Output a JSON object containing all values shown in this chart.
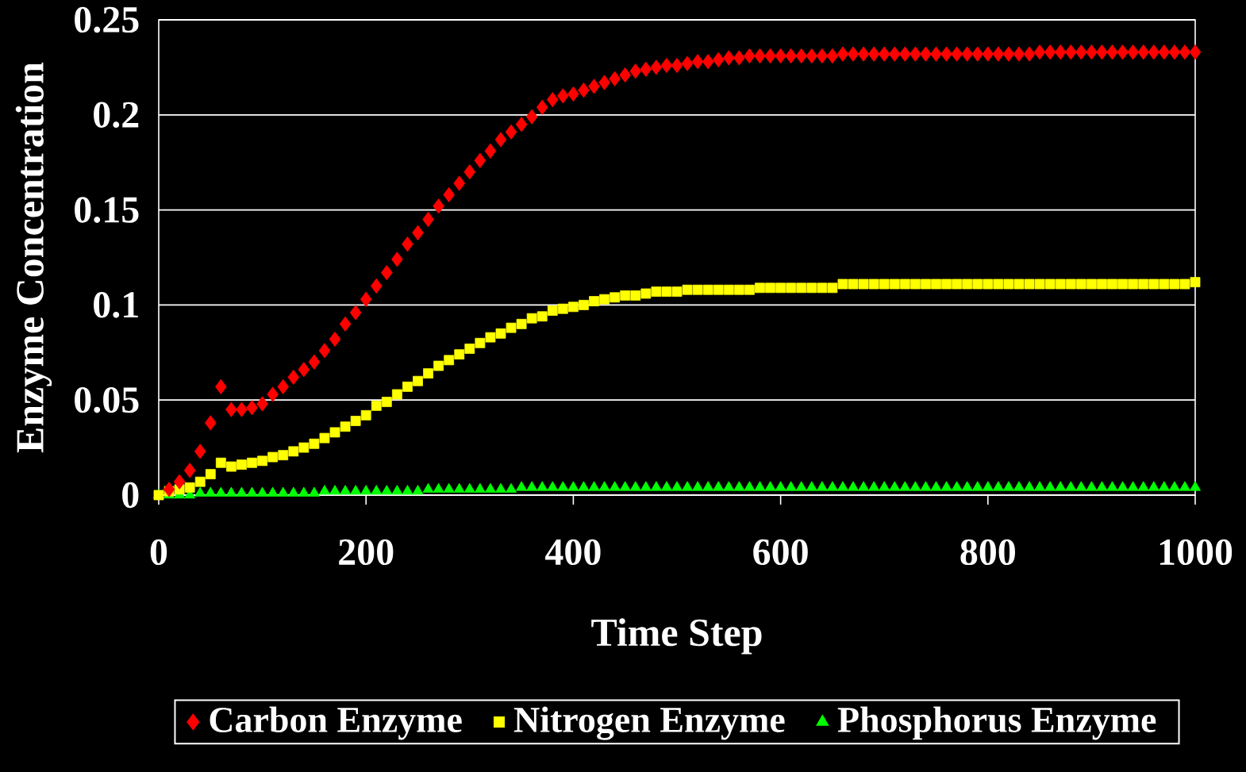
{
  "chart_data": {
    "type": "scatter",
    "xlabel": "Time Step",
    "ylabel": "Enzyme Concentration",
    "x": [
      0,
      10,
      20,
      30,
      40,
      50,
      60,
      70,
      80,
      90,
      100,
      110,
      120,
      130,
      140,
      150,
      160,
      170,
      180,
      190,
      200,
      210,
      220,
      230,
      240,
      250,
      260,
      270,
      280,
      290,
      300,
      310,
      320,
      330,
      340,
      350,
      360,
      370,
      380,
      390,
      400,
      410,
      420,
      430,
      440,
      450,
      460,
      470,
      480,
      490,
      500,
      510,
      520,
      530,
      540,
      550,
      560,
      570,
      580,
      590,
      600,
      610,
      620,
      630,
      640,
      650,
      660,
      670,
      680,
      690,
      700,
      710,
      720,
      730,
      740,
      750,
      760,
      770,
      780,
      790,
      800,
      810,
      820,
      830,
      840,
      850,
      860,
      870,
      880,
      890,
      900,
      910,
      920,
      930,
      940,
      950,
      960,
      970,
      980,
      990,
      1000
    ],
    "series": [
      {
        "name": "Carbon Enzyme",
        "color": "#ff0000",
        "marker": "diamond",
        "values": [
          null,
          0.003,
          0.007,
          0.013,
          0.023,
          0.038,
          0.057,
          0.045,
          0.045,
          0.046,
          0.048,
          0.053,
          0.057,
          0.062,
          0.066,
          0.07,
          0.076,
          0.082,
          0.09,
          0.096,
          0.103,
          0.11,
          0.117,
          0.124,
          0.132,
          0.138,
          0.145,
          0.152,
          0.158,
          0.164,
          0.17,
          0.176,
          0.181,
          0.187,
          0.191,
          0.195,
          0.199,
          0.204,
          0.208,
          0.21,
          0.211,
          0.213,
          0.215,
          0.217,
          0.219,
          0.221,
          0.223,
          0.224,
          0.225,
          0.226,
          0.226,
          0.227,
          0.228,
          0.228,
          0.229,
          0.23,
          0.23,
          0.231,
          0.231,
          0.231,
          0.231,
          0.231,
          0.231,
          0.231,
          0.231,
          0.231,
          0.232,
          0.232,
          0.232,
          0.232,
          0.232,
          0.232,
          0.232,
          0.232,
          0.232,
          0.232,
          0.232,
          0.232,
          0.232,
          0.232,
          0.232,
          0.232,
          0.232,
          0.232,
          0.232,
          0.233,
          0.233,
          0.233,
          0.233,
          0.233,
          0.233,
          0.233,
          0.233,
          0.233,
          0.233,
          0.233,
          0.233,
          0.233,
          0.233,
          0.233,
          0.233
        ]
      },
      {
        "name": "Nitrogen Enzyme",
        "color": "#ffff00",
        "marker": "square",
        "values": [
          0,
          0.002,
          0.003,
          0.004,
          0.007,
          0.011,
          0.017,
          0.015,
          0.016,
          0.017,
          0.018,
          0.02,
          0.021,
          0.023,
          0.025,
          0.027,
          0.03,
          0.033,
          0.036,
          0.039,
          0.042,
          0.047,
          0.049,
          0.053,
          0.057,
          0.06,
          0.064,
          0.068,
          0.071,
          0.074,
          0.077,
          0.08,
          0.083,
          0.085,
          0.088,
          0.09,
          0.093,
          0.094,
          0.097,
          0.098,
          0.099,
          0.1,
          0.102,
          0.103,
          0.104,
          0.105,
          0.105,
          0.106,
          0.107,
          0.107,
          0.107,
          0.108,
          0.108,
          0.108,
          0.108,
          0.108,
          0.108,
          0.108,
          0.109,
          0.109,
          0.109,
          0.109,
          0.109,
          0.109,
          0.109,
          0.109,
          0.111,
          0.111,
          0.111,
          0.111,
          0.111,
          0.111,
          0.111,
          0.111,
          0.111,
          0.111,
          0.111,
          0.111,
          0.111,
          0.111,
          0.111,
          0.111,
          0.111,
          0.111,
          0.111,
          0.111,
          0.111,
          0.111,
          0.111,
          0.111,
          0.111,
          0.111,
          0.111,
          0.111,
          0.111,
          0.111,
          0.111,
          0.111,
          0.111,
          0.111,
          0.112
        ]
      },
      {
        "name": "Phosphorus Enzyme",
        "color": "#00ff00",
        "marker": "triangle",
        "values": [
          0,
          0,
          0,
          0,
          0.001,
          0.001,
          0.001,
          0.001,
          0.001,
          0.001,
          0.001,
          0.001,
          0.001,
          0.001,
          0.001,
          0.001,
          0.002,
          0.002,
          0.002,
          0.002,
          0.002,
          0.002,
          0.002,
          0.002,
          0.002,
          0.002,
          0.003,
          0.003,
          0.003,
          0.003,
          0.003,
          0.003,
          0.003,
          0.003,
          0.003,
          0.004,
          0.004,
          0.004,
          0.004,
          0.004,
          0.004,
          0.004,
          0.004,
          0.004,
          0.004,
          0.004,
          0.004,
          0.004,
          0.004,
          0.004,
          0.004,
          0.004,
          0.004,
          0.004,
          0.004,
          0.004,
          0.004,
          0.004,
          0.004,
          0.004,
          0.004,
          0.004,
          0.004,
          0.004,
          0.004,
          0.004,
          0.004,
          0.004,
          0.004,
          0.004,
          0.004,
          0.004,
          0.004,
          0.004,
          0.004,
          0.004,
          0.004,
          0.004,
          0.004,
          0.004,
          0.004,
          0.004,
          0.004,
          0.004,
          0.004,
          0.004,
          0.004,
          0.004,
          0.004,
          0.004,
          0.004,
          0.004,
          0.004,
          0.004,
          0.004,
          0.004,
          0.004,
          0.004,
          0.004,
          0.004,
          0.004
        ]
      }
    ],
    "xlim": [
      0,
      1000
    ],
    "xticks": [
      0,
      200,
      400,
      600,
      800,
      1000
    ],
    "ylim": [
      0,
      0.25
    ],
    "yticks": [
      0,
      0.05,
      0.1,
      0.15,
      0.2,
      0.25
    ],
    "grid": "y",
    "legend": "bottom"
  }
}
